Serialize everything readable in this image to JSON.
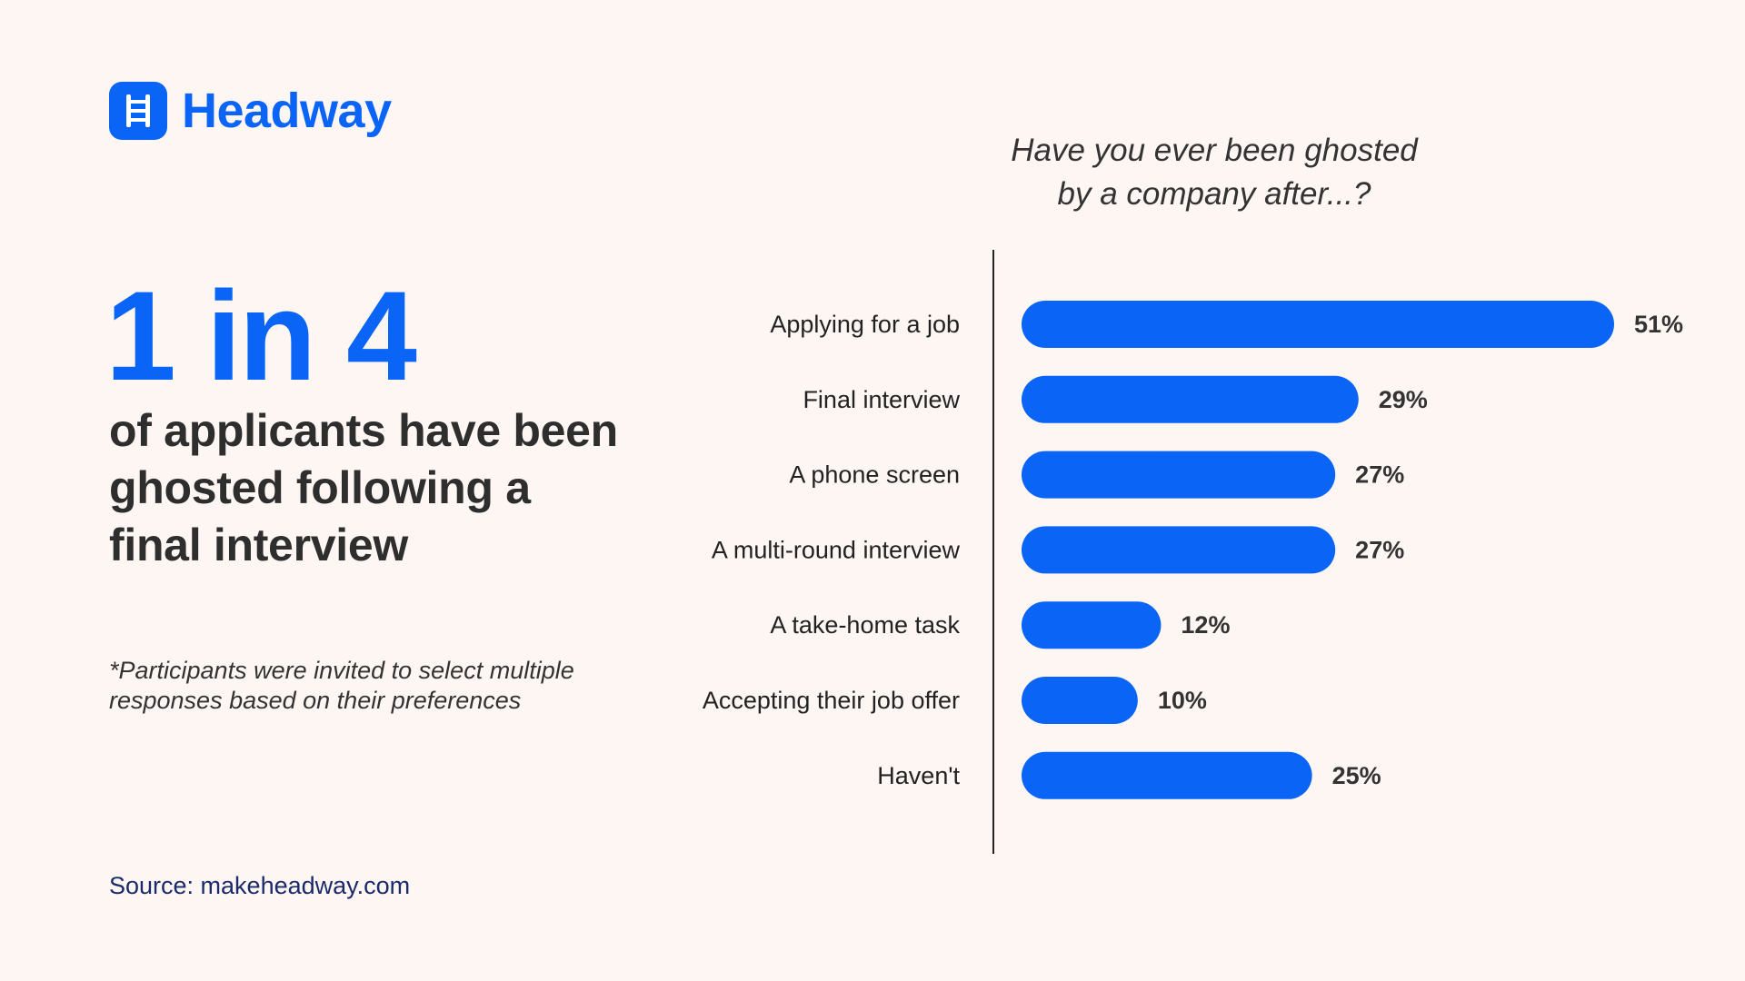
{
  "brand": {
    "name": "Headway",
    "color": "#0A64F5",
    "icon": "ladder-icon"
  },
  "hero": {
    "stat": "1 in 4",
    "headline": "of applicants have been ghosted following a final interview",
    "footnote": "*Participants were invited to select multiple responses based on their preferences"
  },
  "source": "Source: makeheadway.com",
  "chart_data": {
    "type": "bar",
    "orientation": "horizontal",
    "title": "Have you ever been ghosted by a company after...?",
    "title_lines": [
      "Have you ever been ghosted",
      "by a company after...?"
    ],
    "categories": [
      "Applying for a job",
      "Final interview",
      "A phone screen",
      "A multi-round interview",
      "A take-home task",
      "Accepting their job offer",
      "Haven't"
    ],
    "values": [
      51,
      29,
      27,
      27,
      12,
      10,
      25
    ],
    "value_labels": [
      "51%",
      "29%",
      "27%",
      "27%",
      "12%",
      "10%",
      "25%"
    ],
    "unit": "%",
    "xlim": [
      0,
      51
    ],
    "bar_color": "#0A64F5",
    "grid": false,
    "legend": "none"
  }
}
